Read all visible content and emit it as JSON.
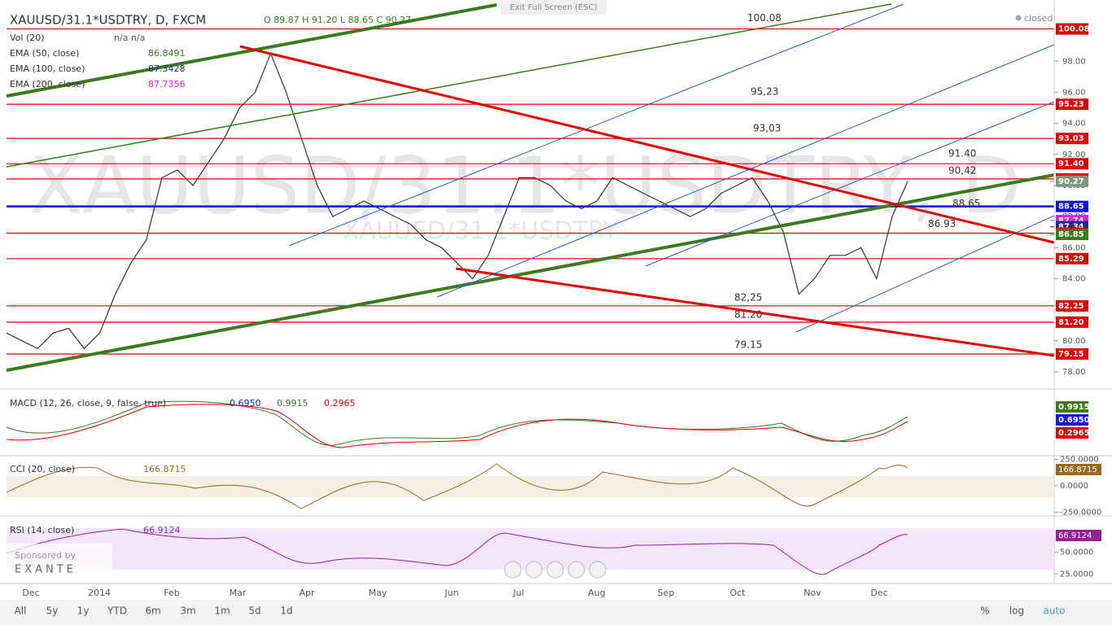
{
  "header": {
    "symbol": "XAUUSD/31.1*USDTRY, D, FXCM",
    "ohlc": "O 89.87  H 91.20  L 88.65  C 90.27",
    "exit": "Exit Full Screen (ESC)",
    "status": "closed"
  },
  "watermark": {
    "big": "XAUUSD/31.1*USDTRY, D",
    "small": "XAUUSD/31.1*USDTRY"
  },
  "legend": [
    {
      "name": "Vol (20)",
      "value": "n/a  n/a",
      "color": "#555555"
    },
    {
      "name": "EMA (50, close)",
      "value": "86.8491",
      "color": "#3c7a1e"
    },
    {
      "name": "EMA (100, close)",
      "value": "87.3428",
      "color": "#1a2a8a"
    },
    {
      "name": "EMA (200, close)",
      "value": "87.7356",
      "color": "#e020e0"
    }
  ],
  "price_axis": {
    "ylim": [
      77,
      101
    ],
    "ticks": [
      {
        "value": 78,
        "label": "78.00"
      },
      {
        "value": 80,
        "label": "80.00"
      },
      {
        "value": 82,
        "label": "82.00"
      },
      {
        "value": 84,
        "label": "84.00"
      },
      {
        "value": 86,
        "label": "86.00"
      },
      {
        "value": 88,
        "label": "88.00"
      },
      {
        "value": 90,
        "label": "90.00"
      },
      {
        "value": 92,
        "label": "92.00"
      },
      {
        "value": 94,
        "label": "94.00"
      },
      {
        "value": 96,
        "label": "96.00"
      },
      {
        "value": 98,
        "label": "98.00"
      }
    ]
  },
  "levels": [
    {
      "value": 100.08,
      "label": "100.08",
      "color": "#e00000",
      "line": true
    },
    {
      "value": 95.23,
      "label": "95.23",
      "color": "#e00000",
      "line": true
    },
    {
      "value": 93.03,
      "label": "93.03",
      "color": "#e00000",
      "line": true
    },
    {
      "value": 91.4,
      "label": "91.40",
      "color": "#e00000",
      "line": true
    },
    {
      "value": 90.42,
      "label": "90.42",
      "color": "#e00000",
      "line": true
    },
    {
      "value": 90.27,
      "label": "90.27",
      "color": "#7a9a7a",
      "line": false
    },
    {
      "value": 88.65,
      "label": "88.65",
      "color": "#1010e0",
      "line": true
    },
    {
      "value": 87.74,
      "label": "87.74",
      "color": "#e020e0",
      "line": false
    },
    {
      "value": 87.34,
      "label": "87.34",
      "color": "#1a2a8a",
      "line": false
    },
    {
      "value": 86.93,
      "label": "86.93",
      "color": "#e00000",
      "line": true
    },
    {
      "value": 86.85,
      "label": "86.85",
      "color": "#3c7a1e",
      "line": false
    },
    {
      "value": 85.29,
      "label": "85.29",
      "color": "#e00000",
      "line": true
    },
    {
      "value": 82.25,
      "label": "82.25",
      "color": "#e00000",
      "line": true
    },
    {
      "value": 81.2,
      "label": "81.20",
      "color": "#e00000",
      "line": true
    },
    {
      "value": 79.15,
      "label": "79.15",
      "color": "#e00000",
      "line": true
    }
  ],
  "annotations": [
    "100.08",
    "95,23",
    "93,03",
    "91.40",
    "90,42",
    "88,65",
    "86.93",
    "82,25",
    "81.20",
    "79.15"
  ],
  "price": [
    80.5,
    80,
    79.5,
    80.5,
    80.8,
    79.5,
    80.5,
    83,
    85,
    86.5,
    90.5,
    91,
    90,
    91.5,
    93,
    95,
    96,
    98.5,
    96,
    93,
    90,
    88,
    88.5,
    89,
    88.5,
    88,
    87.5,
    86.5,
    86,
    85,
    84,
    85.5,
    88,
    90.5,
    90.5,
    90,
    89,
    88.5,
    89,
    90.5,
    90,
    89.5,
    89,
    88.5,
    88,
    88.5,
    89.5,
    90,
    90.5,
    89,
    87,
    83,
    84,
    85.5,
    85.5,
    86,
    84,
    88,
    90.27
  ],
  "macd": {
    "title": "MACD (12, 26, close, 9, false, true)",
    "values": [
      "0.6950",
      "0.9915",
      "0.2965"
    ],
    "badges": [
      {
        "label": "0.9915",
        "color": "#3c7a1e"
      },
      {
        "label": "0.6950",
        "color": "#1010e0"
      },
      {
        "label": "0.2965",
        "color": "#e00000"
      }
    ]
  },
  "cci": {
    "title": "CCI (20, close)",
    "value": "166.8715",
    "badge": "166.8715",
    "ylim": [
      -270,
      270
    ],
    "ticks": [
      {
        "value": 250,
        "label": "250.0000"
      },
      {
        "value": 0,
        "label": "0.0000"
      },
      {
        "value": -250,
        "label": "-250.0000"
      }
    ]
  },
  "rsi": {
    "title": "RSI (14, close)",
    "value": "66.9124",
    "badge": "66.9124",
    "ylim": [
      15,
      90
    ],
    "ticks": [
      {
        "value": 50,
        "label": "50.0000"
      },
      {
        "value": 25,
        "label": "25.0000"
      }
    ]
  },
  "sponsor": {
    "text": "Sponsored by",
    "brand": "EXANTE"
  },
  "time_axis": [
    "Dec",
    "2014",
    "Feb",
    "Mar",
    "Apr",
    "May",
    "Jun",
    "Jul",
    "Aug",
    "Sep",
    "Oct",
    "Nov",
    "Dec"
  ],
  "toolbar": {
    "ranges": [
      "All",
      "5y",
      "1y",
      "YTD",
      "6m",
      "3m",
      "1m",
      "5d",
      "1d"
    ],
    "right": [
      "%",
      "log",
      "auto"
    ]
  }
}
